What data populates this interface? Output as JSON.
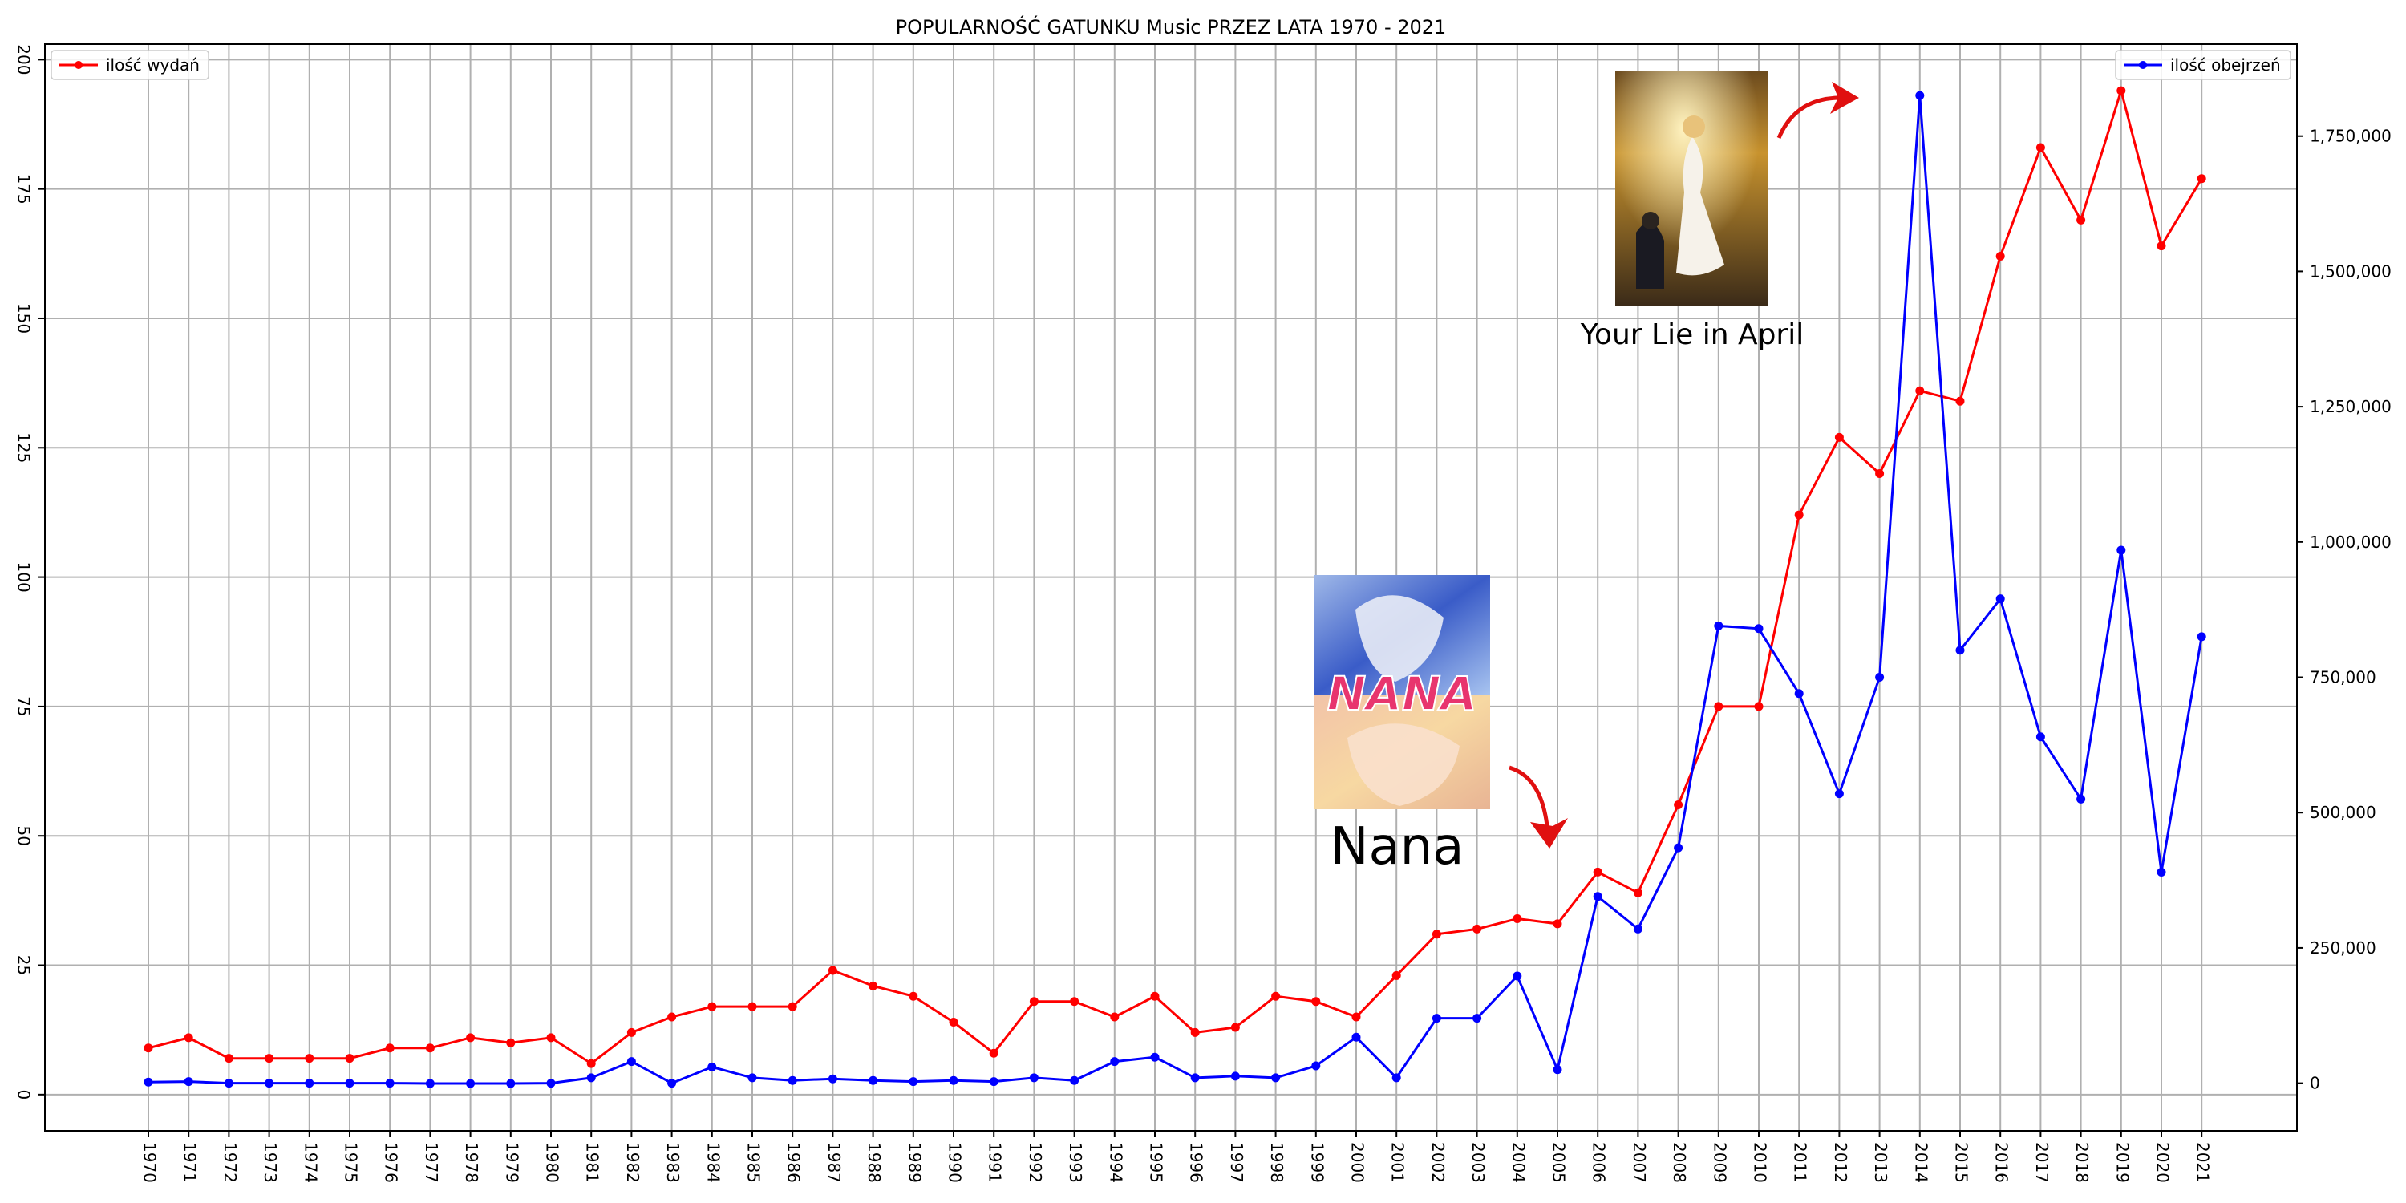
{
  "chart_data": {
    "type": "line",
    "title": "POPULARNOŚĆ GATUNKU Music PRZEZ LATA 1970 - 2021",
    "categories": [
      "1970",
      "1971",
      "1972",
      "1973",
      "1974",
      "1975",
      "1976",
      "1977",
      "1978",
      "1979",
      "1980",
      "1981",
      "1982",
      "1983",
      "1984",
      "1985",
      "1986",
      "1987",
      "1988",
      "1989",
      "1990",
      "1991",
      "1992",
      "1993",
      "1994",
      "1995",
      "1996",
      "1997",
      "1998",
      "1999",
      "2000",
      "2001",
      "2002",
      "2003",
      "2004",
      "2005",
      "2006",
      "2007",
      "2008",
      "2009",
      "2010",
      "2011",
      "2012",
      "2013",
      "2014",
      "2015",
      "2016",
      "2017",
      "2018",
      "2019",
      "2020",
      "2021"
    ],
    "series": [
      {
        "name": "ilość wydań",
        "axis": "left",
        "color": "#ff0000",
        "values": [
          9,
          11,
          7,
          7,
          7,
          7,
          9,
          9,
          11,
          10,
          11,
          6,
          12,
          15,
          17,
          17,
          17,
          24,
          21,
          19,
          14,
          8,
          18,
          18,
          15,
          19,
          12,
          13,
          19,
          18,
          15,
          23,
          31,
          32,
          34,
          33,
          43,
          39,
          56,
          75,
          75,
          112,
          127,
          120,
          136,
          134,
          162,
          183,
          169,
          194,
          164,
          177
        ]
      },
      {
        "name": "ilość obejrzeń",
        "axis": "right",
        "color": "#0000ff",
        "values": [
          2000,
          3000,
          0,
          0,
          0,
          0,
          0,
          -500,
          -500,
          -500,
          0,
          10000,
          40000,
          0,
          30000,
          10000,
          5000,
          8000,
          5000,
          3000,
          5000,
          3000,
          10000,
          5000,
          40000,
          48000,
          10000,
          13000,
          10000,
          32000,
          85000,
          10000,
          120000,
          120000,
          198000,
          25000,
          345000,
          285000,
          435000,
          845000,
          840000,
          720000,
          535000,
          750000,
          1825000,
          800000,
          895000,
          640000,
          525000,
          985000,
          390000,
          825000
        ]
      }
    ],
    "left_axis": {
      "min": -7,
      "max": 203,
      "ticks": [
        0,
        25,
        50,
        75,
        100,
        125,
        150,
        175,
        200
      ]
    },
    "right_axis": {
      "min": -88000,
      "max": 1920000,
      "ticks": [
        0,
        250000,
        500000,
        750000,
        1000000,
        1250000,
        1500000,
        1750000
      ],
      "tick_labels": [
        "0",
        "250,000",
        "500,000",
        "750,000",
        "1,000,000",
        "1,250,000",
        "1,500,000",
        "1,750,000"
      ]
    },
    "grid": true,
    "legend": [
      {
        "label": "ilość wydań",
        "placement": "top-left",
        "color": "#ff0000"
      },
      {
        "label": "ilość obejrzeń",
        "placement": "top-right",
        "color": "#0000ff"
      }
    ],
    "annotations": [
      {
        "caption": "Nana",
        "points_to": "2006"
      },
      {
        "caption": "Your Lie in April",
        "points_to": "2014"
      }
    ]
  }
}
